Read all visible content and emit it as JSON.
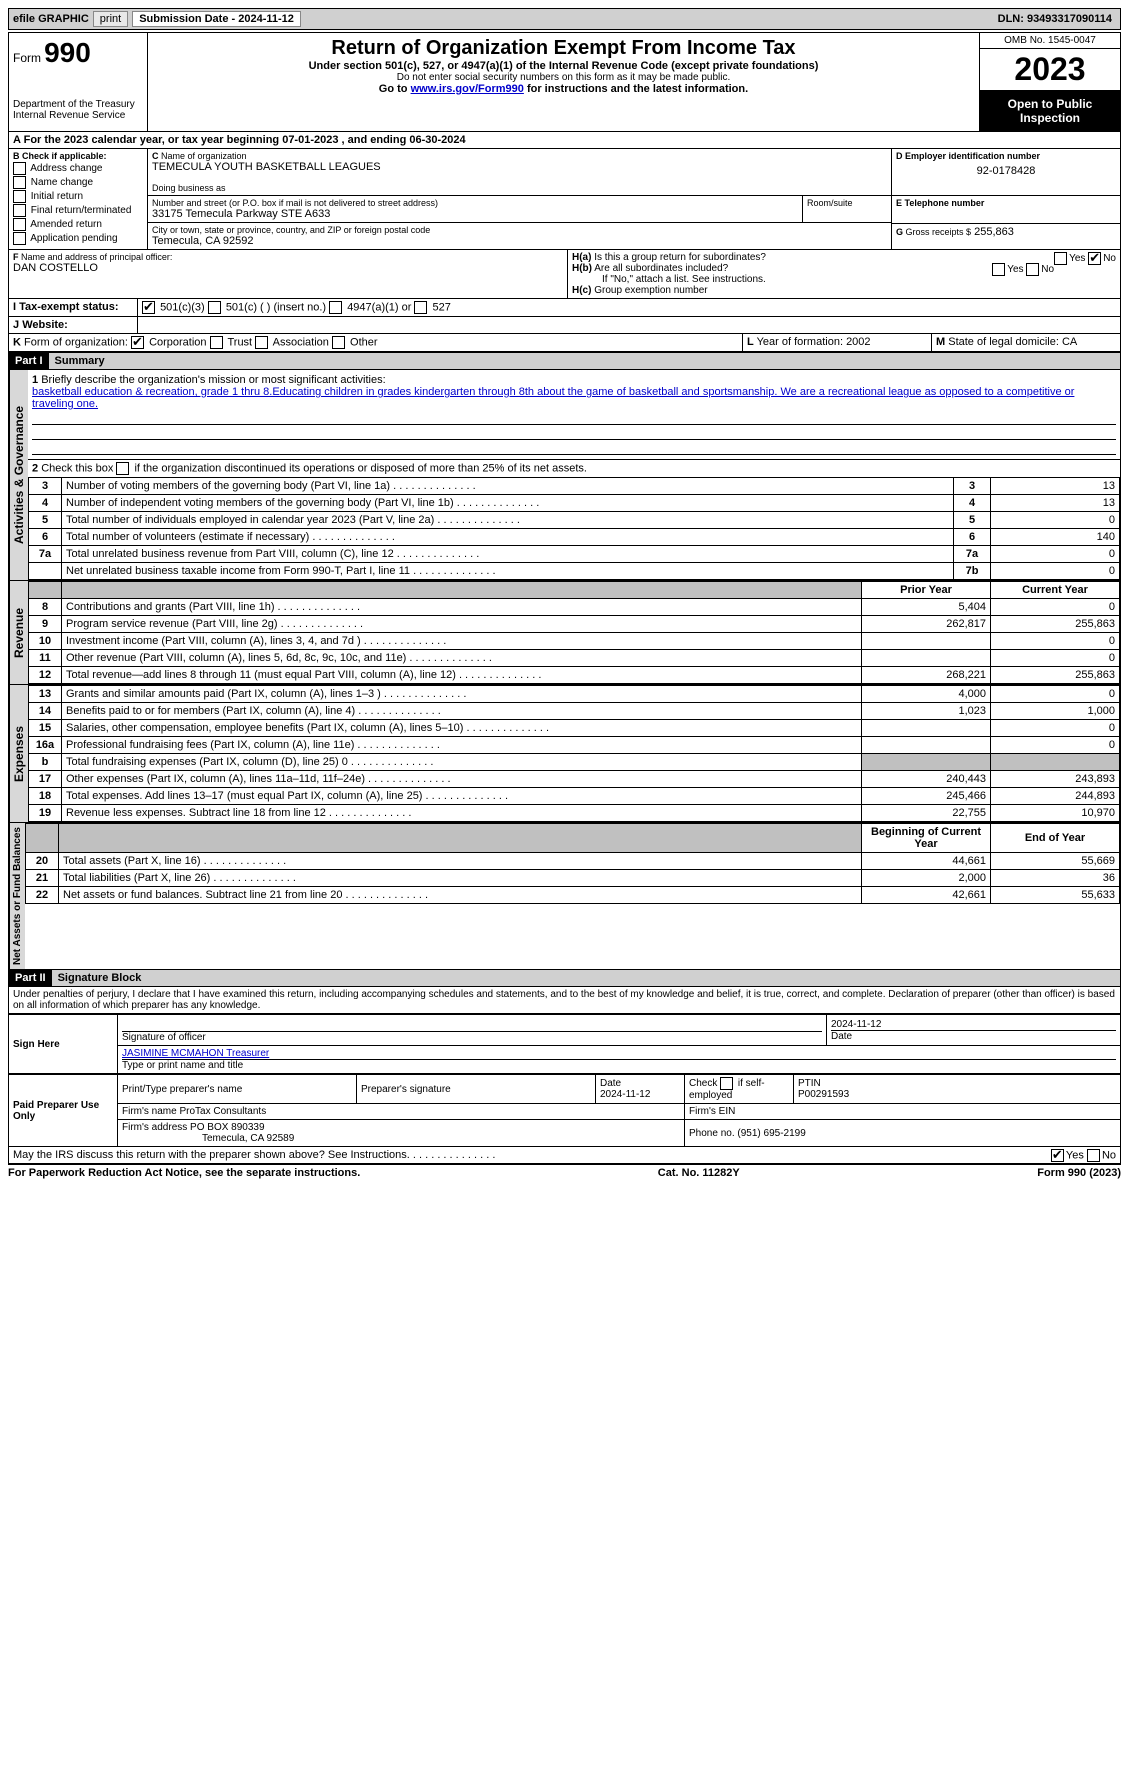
{
  "topbar": {
    "efile_label": "efile GRAPHIC",
    "print_btn": "print",
    "submission_label": "Submission Date - 2024-11-12",
    "dln_label": "DLN: 93493317090114"
  },
  "header": {
    "form_word": "Form",
    "form_num": "990",
    "dept": "Department of the Treasury",
    "irs": "Internal Revenue Service",
    "title": "Return of Organization Exempt From Income Tax",
    "subtitle": "Under section 501(c), 527, or 4947(a)(1) of the Internal Revenue Code (except private foundations)",
    "ssn_note": "Do not enter social security numbers on this form as it may be made public.",
    "goto_prefix": "Go to ",
    "goto_link": "www.irs.gov/Form990",
    "goto_suffix": " for instructions and the latest information.",
    "omb": "OMB No. 1545-0047",
    "year": "2023",
    "open_public": "Open to Public Inspection"
  },
  "line_a": "For the 2023 calendar year, or tax year beginning 07-01-2023    , and ending 06-30-2024",
  "box_b": {
    "header": "Check if applicable:",
    "items": [
      "Address change",
      "Name change",
      "Initial return",
      "Final return/terminated",
      "Amended return",
      "Application pending"
    ]
  },
  "box_c": {
    "label": "Name of organization",
    "value": "TEMECULA YOUTH BASKETBALL LEAGUES",
    "dba_label": "Doing business as",
    "street_label": "Number and street (or P.O. box if mail is not delivered to street address)",
    "street_value": "33175 Temecula Parkway STE A633",
    "room_label": "Room/suite",
    "city_label": "City or town, state or province, country, and ZIP or foreign postal code",
    "city_value": "Temecula, CA   92592"
  },
  "box_d": {
    "label": "Employer identification number",
    "value": "92-0178428"
  },
  "box_e": {
    "label": "Telephone number"
  },
  "box_g": {
    "label": "Gross receipts $",
    "value": "255,863"
  },
  "box_f": {
    "label": "Name and address of principal officer:",
    "value": "DAN COSTELLO"
  },
  "box_h": {
    "a_label": "Is this a group return for subordinates?",
    "b_label": "Are all subordinates included?",
    "note": "If \"No,\" attach a list. See instructions.",
    "c_label": "Group exemption number",
    "yes": "Yes",
    "no": "No"
  },
  "box_i": {
    "label": "Tax-exempt status:",
    "opts": [
      "501(c)(3)",
      "501(c) (  ) (insert no.)",
      "4947(a)(1) or",
      "527"
    ]
  },
  "box_j": {
    "label": "Website:"
  },
  "box_k": {
    "label": "Form of organization:",
    "opts": [
      "Corporation",
      "Trust",
      "Association",
      "Other"
    ]
  },
  "box_l": {
    "label": "Year of formation:",
    "value": "2002"
  },
  "box_m": {
    "label": "State of legal domicile:",
    "value": "CA"
  },
  "part1": {
    "num": "Part I",
    "title": "Summary"
  },
  "summary_sections": {
    "activities": "Activities & Governance",
    "revenue": "Revenue",
    "expenses": "Expenses",
    "netassets": "Net Assets or Fund Balances"
  },
  "line1": {
    "label": "Briefly describe the organization's mission or most significant activities:",
    "text": "basketball education & recreation, grade 1 thru 8.Educating children in grades kindergarten through 8th about the game of basketball and sportsmanship. We are a recreational league as opposed to a competitive or traveling one."
  },
  "line2": "Check this box    if the organization discontinued its operations or disposed of more than 25% of its net assets.",
  "gov_lines": [
    {
      "n": "3",
      "t": "Number of voting members of the governing body (Part VI, line 1a)",
      "box": "3",
      "v": "13"
    },
    {
      "n": "4",
      "t": "Number of independent voting members of the governing body (Part VI, line 1b)",
      "box": "4",
      "v": "13"
    },
    {
      "n": "5",
      "t": "Total number of individuals employed in calendar year 2023 (Part V, line 2a)",
      "box": "5",
      "v": "0"
    },
    {
      "n": "6",
      "t": "Total number of volunteers (estimate if necessary)",
      "box": "6",
      "v": "140"
    },
    {
      "n": "7a",
      "t": "Total unrelated business revenue from Part VIII, column (C), line 12",
      "box": "7a",
      "v": "0"
    },
    {
      "n": "",
      "t": "Net unrelated business taxable income from Form 990-T, Part I, line 11",
      "box": "7b",
      "v": "0"
    }
  ],
  "year_headers": {
    "prior": "Prior Year",
    "current": "Current Year",
    "begin": "Beginning of Current Year",
    "end": "End of Year"
  },
  "rev_lines": [
    {
      "n": "8",
      "t": "Contributions and grants (Part VIII, line 1h)",
      "p": "5,404",
      "c": "0"
    },
    {
      "n": "9",
      "t": "Program service revenue (Part VIII, line 2g)",
      "p": "262,817",
      "c": "255,863"
    },
    {
      "n": "10",
      "t": "Investment income (Part VIII, column (A), lines 3, 4, and 7d )",
      "p": "",
      "c": "0"
    },
    {
      "n": "11",
      "t": "Other revenue (Part VIII, column (A), lines 5, 6d, 8c, 9c, 10c, and 11e)",
      "p": "",
      "c": "0"
    },
    {
      "n": "12",
      "t": "Total revenue—add lines 8 through 11 (must equal Part VIII, column (A), line 12)",
      "p": "268,221",
      "c": "255,863"
    }
  ],
  "exp_lines": [
    {
      "n": "13",
      "t": "Grants and similar amounts paid (Part IX, column (A), lines 1–3 )",
      "p": "4,000",
      "c": "0"
    },
    {
      "n": "14",
      "t": "Benefits paid to or for members (Part IX, column (A), line 4)",
      "p": "1,023",
      "c": "1,000"
    },
    {
      "n": "15",
      "t": "Salaries, other compensation, employee benefits (Part IX, column (A), lines 5–10)",
      "p": "",
      "c": "0"
    },
    {
      "n": "16a",
      "t": "Professional fundraising fees (Part IX, column (A), line 11e)",
      "p": "",
      "c": "0"
    },
    {
      "n": "b",
      "t": "Total fundraising expenses (Part IX, column (D), line 25) 0",
      "p": "shade",
      "c": "shade"
    },
    {
      "n": "17",
      "t": "Other expenses (Part IX, column (A), lines 11a–11d, 11f–24e)",
      "p": "240,443",
      "c": "243,893"
    },
    {
      "n": "18",
      "t": "Total expenses. Add lines 13–17 (must equal Part IX, column (A), line 25)",
      "p": "245,466",
      "c": "244,893"
    },
    {
      "n": "19",
      "t": "Revenue less expenses. Subtract line 18 from line 12",
      "p": "22,755",
      "c": "10,970"
    }
  ],
  "net_lines": [
    {
      "n": "20",
      "t": "Total assets (Part X, line 16)",
      "p": "44,661",
      "c": "55,669"
    },
    {
      "n": "21",
      "t": "Total liabilities (Part X, line 26)",
      "p": "2,000",
      "c": "36"
    },
    {
      "n": "22",
      "t": "Net assets or fund balances. Subtract line 21 from line 20",
      "p": "42,661",
      "c": "55,633"
    }
  ],
  "part2": {
    "num": "Part II",
    "title": "Signature Block"
  },
  "perjury": "Under penalties of perjury, I declare that I have examined this return, including accompanying schedules and statements, and to the best of my knowledge and belief, it is true, correct, and complete. Declaration of preparer (other than officer) is based on all information of which preparer has any knowledge.",
  "sign": {
    "here": "Sign Here",
    "sig_officer": "Signature of officer",
    "officer_name": "JASIMINE MCMAHON  Treasurer",
    "type_title": "Type or print name and title",
    "date": "Date",
    "date_val": "2024-11-12"
  },
  "paid": {
    "label": "Paid Preparer Use Only",
    "print_name": "Print/Type preparer's name",
    "prep_sig": "Preparer's signature",
    "date_label": "Date",
    "date_val": "2024-11-12",
    "check_label": "Check         if self-employed",
    "ptin_label": "PTIN",
    "ptin_val": "P00291593",
    "firm_name_label": "Firm's name",
    "firm_name": "ProTax Consultants",
    "firm_ein_label": "Firm's EIN",
    "firm_addr_label": "Firm's address",
    "firm_addr1": "PO BOX 890339",
    "firm_addr2": "Temecula, CA   92589",
    "phone_label": "Phone no.",
    "phone_val": "(951) 695-2199"
  },
  "discuss": "May the IRS discuss this return with the preparer shown above? See Instructions.",
  "footer": {
    "left": "For Paperwork Reduction Act Notice, see the separate instructions.",
    "mid": "Cat. No. 11282Y",
    "right": "Form 990 (2023)"
  }
}
